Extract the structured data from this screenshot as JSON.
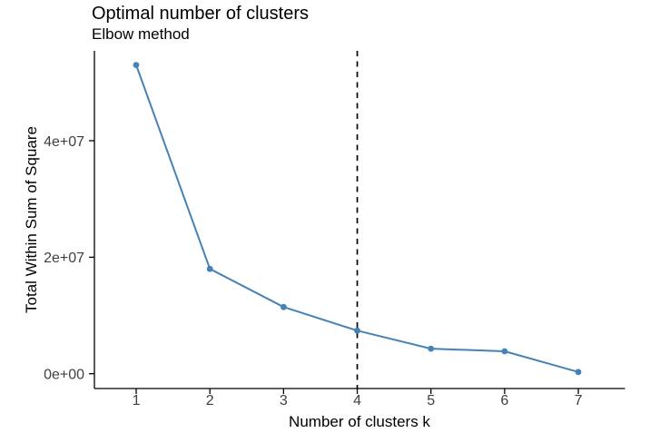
{
  "chart": {
    "title": "Optimal number of clusters",
    "subtitle": "Elbow method"
  },
  "chart_data": {
    "type": "line",
    "title": "Optimal number of clusters",
    "subtitle": "Elbow method",
    "xlabel": "Number of clusters k",
    "ylabel": "Total Within Sum of Square",
    "x": [
      1,
      2,
      3,
      4,
      5,
      6,
      7
    ],
    "y": [
      53000000,
      18000000,
      11450000,
      7400000,
      4300000,
      3850000,
      300000
    ],
    "x_tick_labels": [
      "1",
      "2",
      "3",
      "4",
      "5",
      "6",
      "7"
    ],
    "y_ticks": [
      {
        "value": 0,
        "label": "0e+00"
      },
      {
        "value": 20000000,
        "label": "2e+07"
      },
      {
        "value": 40000000,
        "label": "4e+07"
      }
    ],
    "xlim": [
      0.433,
      7.634
    ],
    "ylim": [
      -2540000,
      55430000
    ],
    "vline": {
      "x": 4,
      "style": "dashed",
      "color": "#000000"
    },
    "line_color": "#4682B4",
    "point_color": "#4682B4",
    "axis_color": "#000000",
    "tick_label_color": "#404040",
    "grid": false,
    "legend_position": "none"
  }
}
